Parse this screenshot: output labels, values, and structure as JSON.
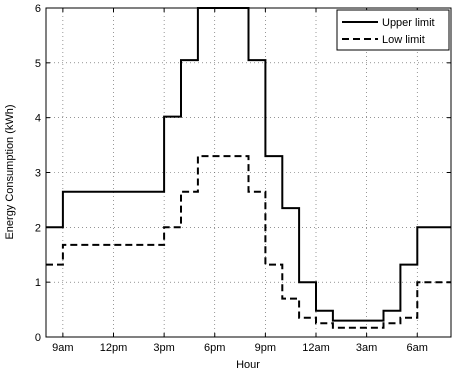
{
  "chart_data": {
    "type": "line",
    "title": "",
    "xlabel": "Hour",
    "ylabel": "Energy Consumption (kWh)",
    "x_tick_labels": [
      "9am",
      "12pm",
      "3pm",
      "6pm",
      "9pm",
      "12am",
      "3am",
      "6am"
    ],
    "x_ticks": [
      1,
      4,
      7,
      10,
      13,
      16,
      19,
      22
    ],
    "y_ticks": [
      0,
      1,
      2,
      3,
      4,
      5,
      6
    ],
    "xlim": [
      0,
      24
    ],
    "ylim": [
      0,
      6
    ],
    "grid": true,
    "legend_position": "top-right",
    "step_edges": [
      0,
      1,
      2,
      3,
      4,
      5,
      6,
      7,
      8,
      9,
      10,
      11,
      12,
      13,
      14,
      15,
      16,
      17,
      18,
      19,
      20,
      21,
      22,
      23,
      24
    ],
    "series": [
      {
        "name": "Upper limit",
        "line_style": "solid",
        "color": "#000000",
        "values": [
          2.0,
          2.65,
          2.65,
          2.65,
          2.65,
          2.65,
          2.65,
          4.02,
          5.05,
          6.0,
          6.0,
          6.0,
          5.05,
          3.3,
          2.35,
          1.0,
          0.48,
          0.3,
          0.3,
          0.3,
          0.48,
          1.32,
          2.0,
          2.0
        ]
      },
      {
        "name": "Low limit",
        "line_style": "dashed",
        "color": "#000000",
        "values": [
          1.32,
          1.68,
          1.68,
          1.68,
          1.68,
          1.68,
          1.68,
          2.0,
          2.65,
          3.3,
          3.3,
          3.3,
          2.65,
          1.32,
          0.7,
          0.35,
          0.25,
          0.17,
          0.17,
          0.17,
          0.25,
          0.35,
          1.0,
          1.0
        ]
      }
    ]
  }
}
